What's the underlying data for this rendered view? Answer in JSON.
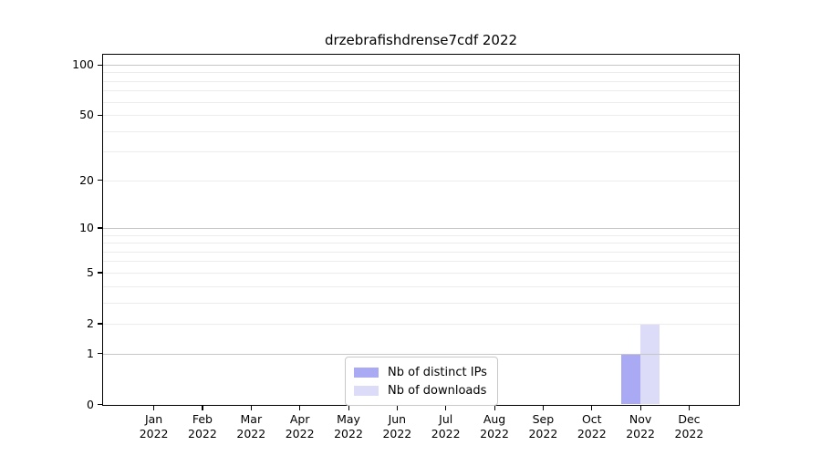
{
  "title": "drzebrafishdrense7cdf 2022",
  "chart_data": {
    "type": "bar",
    "title": "drzebrafishdrense7cdf 2022",
    "x_months": [
      "Jan",
      "Feb",
      "Mar",
      "Apr",
      "May",
      "Jun",
      "Jul",
      "Aug",
      "Sep",
      "Oct",
      "Nov",
      "Dec"
    ],
    "x_year": "2022",
    "series": [
      {
        "name": "Nb of distinct IPs",
        "color": "#a9a9f4",
        "values": [
          0,
          0,
          0,
          0,
          0,
          0,
          0,
          0,
          0,
          0,
          1,
          0
        ]
      },
      {
        "name": "Nb of downloads",
        "color": "#dcdcf8",
        "values": [
          0,
          0,
          0,
          0,
          0,
          0,
          0,
          0,
          0,
          0,
          2,
          0
        ]
      }
    ],
    "yscale": "log1p",
    "ylim": [
      0,
      115
    ],
    "ytick_values": [
      0,
      1,
      2,
      5,
      10,
      20,
      50,
      100
    ],
    "grid_minor_values": [
      2,
      3,
      4,
      5,
      6,
      7,
      8,
      9,
      20,
      30,
      40,
      50,
      60,
      70,
      80,
      90
    ],
    "grid_major_values": [
      1,
      10,
      100
    ],
    "grid": true,
    "legend": {
      "position": "lower center",
      "entries": [
        "Nb of distinct IPs",
        "Nb of downloads"
      ]
    },
    "colors": {
      "distinct_ips": "#a9a9f4",
      "downloads": "#dcdcf8",
      "grid_minor": "#ececec",
      "grid_major": "#c6c6c6",
      "axis": "#000000",
      "legend_border": "#c9c9c9",
      "background": "#ffffff",
      "text": "#000000"
    }
  }
}
